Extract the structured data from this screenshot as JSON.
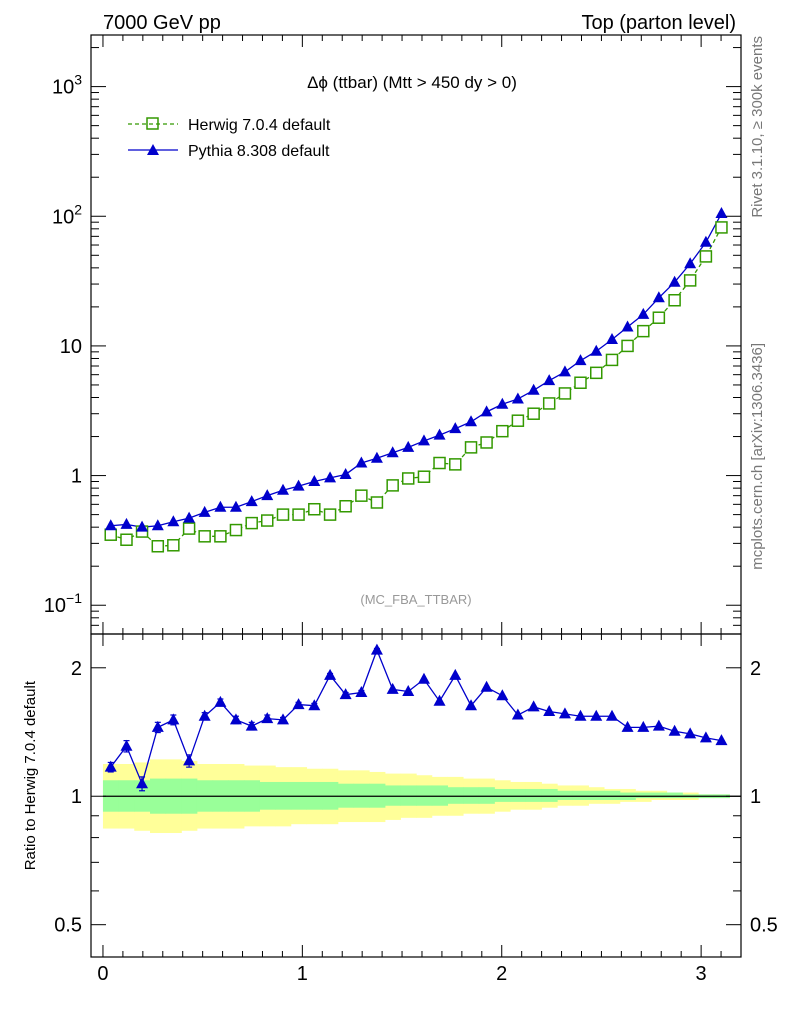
{
  "header": {
    "left": "7000 GeV pp",
    "right": "Top (parton level)"
  },
  "side_labels": {
    "rivet": "Rivet 3.1.10, ≥ 300k events",
    "mcplots": "mcplots.cern.ch [arXiv:1306.3436]"
  },
  "plot_title": "Δϕ (ttbar) (Mtt > 450 dy > 0)",
  "watermark": "(MC_FBA_TTBAR)",
  "colors": {
    "herwig": "#339900",
    "pythia": "#0000cc",
    "band_inner": "#99ff99",
    "band_outer": "#ffff99"
  },
  "chart_data": [
    {
      "type": "line",
      "panel": "main",
      "yscale": "log",
      "ylim": [
        0.06,
        2500
      ],
      "xlim": [
        -0.06,
        3.2
      ],
      "ytick_labels": [
        {
          "value": 0.1,
          "base": "10",
          "exp": "−1"
        },
        {
          "value": 1,
          "base": "1",
          "exp": ""
        },
        {
          "value": 10,
          "base": "10",
          "exp": ""
        },
        {
          "value": 100,
          "base": "10",
          "exp": "2"
        },
        {
          "value": 1000,
          "base": "10",
          "exp": "3"
        }
      ],
      "legend_position": "top-left",
      "series": [
        {
          "name": "Herwig 7.0.4 default",
          "marker": "open-square",
          "line": "dashed",
          "x": [
            0.039,
            0.118,
            0.196,
            0.275,
            0.353,
            0.432,
            0.51,
            0.589,
            0.667,
            0.746,
            0.824,
            0.903,
            0.981,
            1.06,
            1.139,
            1.217,
            1.296,
            1.374,
            1.453,
            1.531,
            1.61,
            1.688,
            1.767,
            1.846,
            1.924,
            2.003,
            2.081,
            2.16,
            2.238,
            2.317,
            2.395,
            2.474,
            2.553,
            2.631,
            2.71,
            2.788,
            2.867,
            2.945,
            3.024,
            3.102
          ],
          "y": [
            0.35,
            0.32,
            0.37,
            0.285,
            0.29,
            0.39,
            0.34,
            0.34,
            0.38,
            0.43,
            0.45,
            0.5,
            0.5,
            0.55,
            0.5,
            0.58,
            0.7,
            0.62,
            0.84,
            0.95,
            0.98,
            1.25,
            1.22,
            1.65,
            1.8,
            2.2,
            2.65,
            3.0,
            3.6,
            4.3,
            5.2,
            6.2,
            7.8,
            10.0,
            13.0,
            16.5,
            22.5,
            32.0,
            49.0,
            82.0
          ]
        },
        {
          "name": "Pythia 8.308 default",
          "marker": "filled-triangle",
          "line": "solid",
          "x": [
            0.039,
            0.118,
            0.196,
            0.275,
            0.353,
            0.432,
            0.51,
            0.589,
            0.667,
            0.746,
            0.824,
            0.903,
            0.981,
            1.06,
            1.139,
            1.217,
            1.296,
            1.374,
            1.453,
            1.531,
            1.61,
            1.688,
            1.767,
            1.846,
            1.924,
            2.003,
            2.081,
            2.16,
            2.238,
            2.317,
            2.395,
            2.474,
            2.553,
            2.631,
            2.71,
            2.788,
            2.867,
            2.945,
            3.024,
            3.102
          ],
          "y": [
            0.41,
            0.42,
            0.4,
            0.41,
            0.44,
            0.47,
            0.52,
            0.57,
            0.57,
            0.63,
            0.7,
            0.77,
            0.83,
            0.9,
            0.96,
            1.02,
            1.25,
            1.36,
            1.5,
            1.65,
            1.85,
            2.05,
            2.3,
            2.6,
            3.1,
            3.55,
            3.9,
            4.55,
            5.4,
            6.3,
            7.7,
            9.1,
            11.2,
            14.0,
            17.5,
            23.5,
            31.0,
            43.0,
            63.0,
            105.0
          ]
        }
      ]
    },
    {
      "type": "line",
      "panel": "ratio",
      "yscale": "log",
      "ylabel": "Ratio to Herwig 7.0.4 default",
      "ylim": [
        0.42,
        2.4
      ],
      "xlim": [
        -0.06,
        3.2
      ],
      "yticks": [
        0.5,
        1,
        2
      ],
      "ytick_labels": [
        "0.5",
        "1",
        "2"
      ],
      "xticks": [
        0,
        1,
        2,
        3
      ],
      "xtick_labels": [
        "0",
        "1",
        "2",
        "3"
      ],
      "reference_line": 1,
      "series": [
        {
          "name": "Pythia 8.308 default",
          "x": [
            0.039,
            0.118,
            0.196,
            0.275,
            0.353,
            0.432,
            0.51,
            0.589,
            0.667,
            0.746,
            0.824,
            0.903,
            0.981,
            1.06,
            1.139,
            1.217,
            1.296,
            1.374,
            1.453,
            1.531,
            1.61,
            1.688,
            1.767,
            1.846,
            1.924,
            2.003,
            2.081,
            2.16,
            2.238,
            2.317,
            2.395,
            2.474,
            2.553,
            2.631,
            2.71,
            2.788,
            2.867,
            2.945,
            3.024,
            3.102
          ],
          "y": [
            1.17,
            1.31,
            1.07,
            1.45,
            1.51,
            1.21,
            1.54,
            1.66,
            1.51,
            1.46,
            1.52,
            1.51,
            1.64,
            1.63,
            1.92,
            1.73,
            1.75,
            2.2,
            1.78,
            1.76,
            1.88,
            1.67,
            1.92,
            1.63,
            1.8,
            1.72,
            1.55,
            1.62,
            1.58,
            1.56,
            1.54,
            1.54,
            1.54,
            1.45,
            1.45,
            1.46,
            1.42,
            1.4,
            1.37,
            1.35
          ],
          "yerr": [
            0.03,
            0.04,
            0.04,
            0.04,
            0.04,
            0.04,
            0.03,
            0.03,
            0.03,
            0.03,
            0.03,
            0.02,
            0.02,
            0.02,
            0.02,
            0.02,
            0.02,
            0.02,
            0.01,
            0.01,
            0.01,
            0.01,
            0.01,
            0.01,
            0.01,
            0.01,
            0.01,
            0.01,
            0.01,
            0.01,
            0.01,
            0.01,
            0.01,
            0.01,
            0.01,
            0.01,
            0.01,
            0.01,
            0.01,
            0.01
          ]
        }
      ],
      "band": {
        "x_edges": [
          0.0,
          0.079,
          0.157,
          0.236,
          0.314,
          0.393,
          0.471,
          0.55,
          0.628,
          0.707,
          0.785,
          0.864,
          0.942,
          1.021,
          1.1,
          1.178,
          1.257,
          1.335,
          1.414,
          1.492,
          1.571,
          1.649,
          1.728,
          1.806,
          1.885,
          1.963,
          2.042,
          2.12,
          2.199,
          2.278,
          2.356,
          2.435,
          2.513,
          2.592,
          2.67,
          2.749,
          2.827,
          2.906,
          2.985,
          3.063,
          3.142
        ],
        "inner_lo": [
          0.92,
          0.92,
          0.92,
          0.91,
          0.91,
          0.91,
          0.92,
          0.92,
          0.92,
          0.92,
          0.93,
          0.93,
          0.93,
          0.93,
          0.93,
          0.94,
          0.94,
          0.94,
          0.95,
          0.95,
          0.95,
          0.95,
          0.96,
          0.96,
          0.96,
          0.97,
          0.97,
          0.97,
          0.97,
          0.98,
          0.98,
          0.98,
          0.98,
          0.98,
          0.99,
          0.99,
          0.99,
          0.99,
          0.99,
          0.99
        ],
        "inner_hi": [
          1.09,
          1.09,
          1.09,
          1.1,
          1.1,
          1.1,
          1.09,
          1.09,
          1.09,
          1.09,
          1.08,
          1.08,
          1.08,
          1.08,
          1.08,
          1.07,
          1.07,
          1.07,
          1.06,
          1.06,
          1.06,
          1.06,
          1.05,
          1.05,
          1.05,
          1.04,
          1.04,
          1.04,
          1.04,
          1.03,
          1.03,
          1.03,
          1.03,
          1.02,
          1.02,
          1.02,
          1.02,
          1.01,
          1.01,
          1.01
        ],
        "outer_lo": [
          0.84,
          0.84,
          0.83,
          0.82,
          0.82,
          0.83,
          0.84,
          0.84,
          0.84,
          0.85,
          0.85,
          0.85,
          0.86,
          0.86,
          0.86,
          0.87,
          0.87,
          0.87,
          0.88,
          0.89,
          0.89,
          0.9,
          0.9,
          0.91,
          0.91,
          0.92,
          0.93,
          0.93,
          0.94,
          0.95,
          0.95,
          0.96,
          0.96,
          0.97,
          0.97,
          0.98,
          0.98,
          0.98,
          0.99,
          0.99
        ],
        "outer_hi": [
          1.19,
          1.19,
          1.2,
          1.22,
          1.22,
          1.21,
          1.19,
          1.19,
          1.19,
          1.18,
          1.18,
          1.17,
          1.17,
          1.16,
          1.16,
          1.15,
          1.15,
          1.14,
          1.13,
          1.13,
          1.12,
          1.11,
          1.11,
          1.1,
          1.1,
          1.09,
          1.08,
          1.08,
          1.07,
          1.06,
          1.06,
          1.05,
          1.04,
          1.04,
          1.03,
          1.03,
          1.02,
          1.02,
          1.01,
          1.01
        ]
      }
    }
  ]
}
